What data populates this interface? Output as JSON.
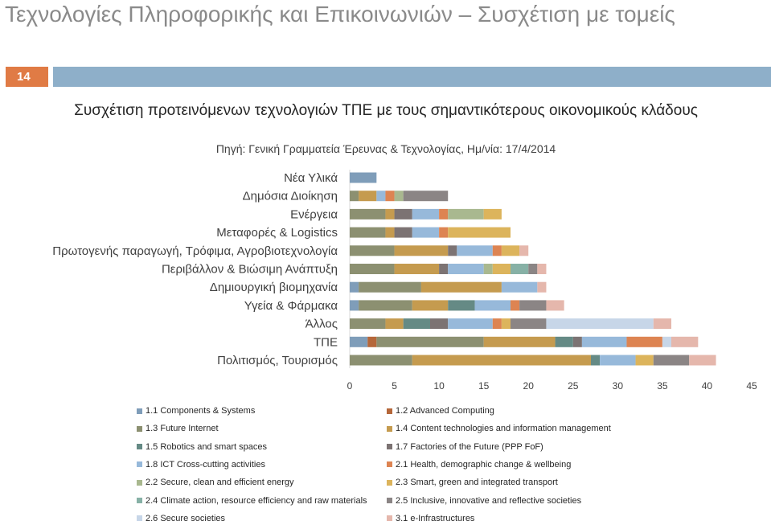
{
  "slide": {
    "title": "Τεχνολογίες Πληροφορικής και Επικοινωνιών – Συσχέτιση με τομείς",
    "number": "14"
  },
  "chart_data": {
    "type": "bar",
    "orientation": "horizontal",
    "stacked": true,
    "title": "Συσχέτιση προτεινόμενων τεχνολογιών ΤΠΕ με τους σημαντικότερους οικονομικούς κλάδους",
    "subtitle": "Πηγή: Γενική Γραμματεία Έρευνας & Τεχνολογίας, Ημ/νία: 17/4/2014",
    "categories": [
      "Νέα Υλικά",
      "Δημόσια Διοίκηση",
      "Ενέργεια",
      "Μεταφορές & Logistics",
      "Πρωτογενής παραγωγή, Τρόφιμα, Αγροβιοτεχνολογία",
      "Περιβάλλον & Βιώσιμη Ανάπτυξη",
      "Δημιουργική βιομηχανία",
      "Υγεία & Φάρμακα",
      "Άλλος",
      "ΤΠΕ",
      "Πολιτισμός, Τουρισμός"
    ],
    "xlim": [
      0,
      45
    ],
    "xticks": [
      0,
      5,
      10,
      15,
      20,
      25,
      30,
      35,
      40,
      45
    ],
    "grid": false,
    "legend_position": "bottom",
    "series": [
      {
        "name": "1.1 Components & Systems",
        "color": "#7f9db9",
        "values": [
          3,
          0,
          0,
          0,
          0,
          0,
          1,
          1,
          0,
          2,
          0
        ]
      },
      {
        "name": "1.2 Advanced Computing",
        "color": "#b5673a",
        "values": [
          0,
          0,
          0,
          0,
          0,
          0,
          0,
          0,
          0,
          1,
          0
        ]
      },
      {
        "name": "1.3 Future Internet",
        "color": "#8c9071",
        "values": [
          0,
          1,
          4,
          4,
          5,
          5,
          7,
          6,
          4,
          12,
          7
        ]
      },
      {
        "name": "1.4 Content technologies and information management",
        "color": "#c59b4f",
        "values": [
          0,
          2,
          1,
          1,
          6,
          5,
          9,
          4,
          2,
          8,
          20
        ]
      },
      {
        "name": "1.5 Robotics and smart spaces",
        "color": "#658a85",
        "values": [
          0,
          0,
          0,
          0,
          0,
          0,
          0,
          3,
          3,
          2,
          1
        ]
      },
      {
        "name": "1.7 Factories of the Future (PPP FoF)",
        "color": "#7c7373",
        "values": [
          0,
          0,
          2,
          2,
          1,
          1,
          0,
          0,
          2,
          1,
          0
        ]
      },
      {
        "name": "1.8 ICT Cross-cutting activities",
        "color": "#97b9da",
        "values": [
          0,
          1,
          3,
          3,
          4,
          4,
          4,
          4,
          5,
          5,
          4
        ]
      },
      {
        "name": "2.1 Health, demographic change & wellbeing",
        "color": "#dd8452",
        "values": [
          0,
          1,
          1,
          1,
          1,
          0,
          0,
          1,
          1,
          4,
          0
        ]
      },
      {
        "name": "2.2 Secure, clean and efficient energy",
        "color": "#a9b88f",
        "values": [
          0,
          1,
          4,
          0,
          0,
          1,
          0,
          0,
          0,
          0,
          0
        ]
      },
      {
        "name": "2.3 Smart, green and integrated transport",
        "color": "#dcb45c",
        "values": [
          0,
          0,
          2,
          7,
          2,
          2,
          0,
          0,
          1,
          0,
          2
        ]
      },
      {
        "name": "2.4 Climate action, resource efficiency and raw materials",
        "color": "#87b1a6",
        "values": [
          0,
          0,
          0,
          0,
          0,
          2,
          0,
          0,
          0,
          0,
          0
        ]
      },
      {
        "name": "2.5 Inclusive, innovative and reflective societies",
        "color": "#8b8585",
        "values": [
          0,
          5,
          0,
          0,
          0,
          1,
          0,
          3,
          4,
          0,
          4
        ]
      },
      {
        "name": "2.6 Secure societies",
        "color": "#c7d6e8",
        "values": [
          0,
          0,
          0,
          0,
          0,
          0,
          0,
          0,
          12,
          1,
          0
        ]
      },
      {
        "name": "3.1 e-Infrastructures",
        "color": "#e5b7ac",
        "values": [
          0,
          0,
          0,
          0,
          1,
          1,
          1,
          2,
          2,
          3,
          3
        ]
      }
    ]
  }
}
